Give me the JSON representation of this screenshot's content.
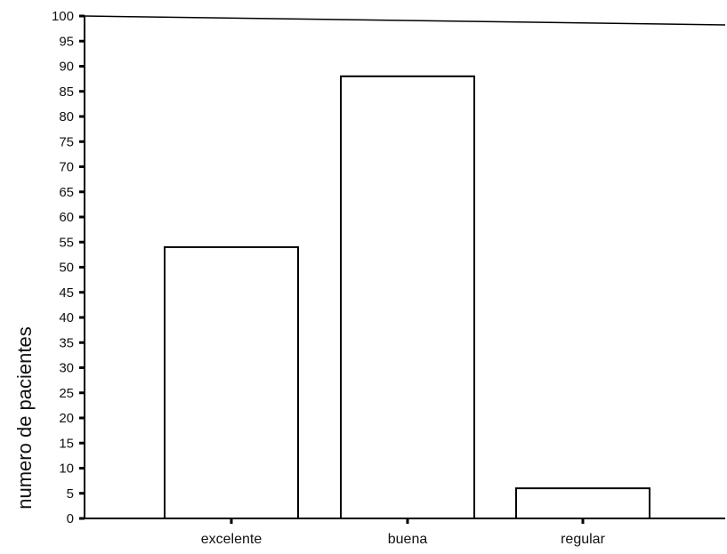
{
  "chart_data": {
    "type": "bar",
    "title": "",
    "xlabel": "",
    "ylabel": "numero de pacientes",
    "categories": [
      "excelente",
      "buena",
      "regular"
    ],
    "values": [
      54,
      88,
      6
    ],
    "ylim": [
      0,
      100
    ],
    "yticks": [
      0,
      5,
      10,
      15,
      20,
      25,
      30,
      35,
      40,
      45,
      50,
      55,
      60,
      65,
      70,
      75,
      80,
      85,
      90,
      95,
      100
    ],
    "grid": false,
    "legend": "none"
  }
}
